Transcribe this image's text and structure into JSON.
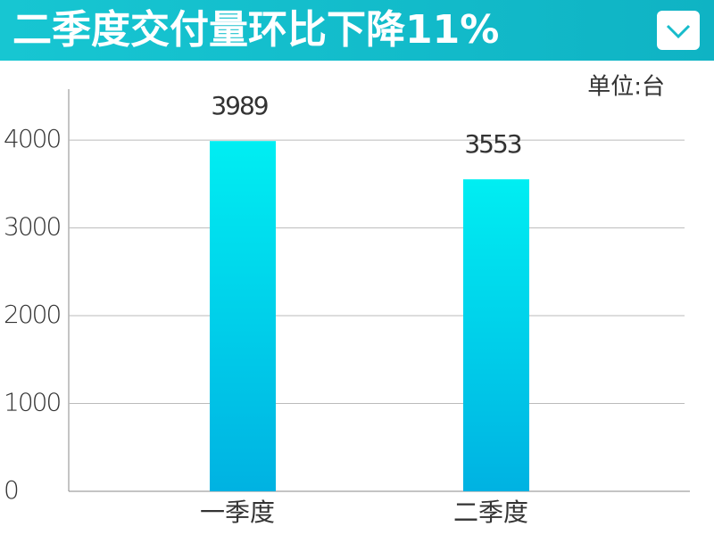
{
  "chart_data": {
    "type": "bar",
    "title": "二季度交付量环比下降11%",
    "unit_label": "单位:台",
    "categories": [
      "一季度",
      "二季度"
    ],
    "values": [
      3989,
      3553
    ],
    "gradient": [
      "#00eef2",
      "#00b2e2"
    ],
    "ylim": [
      0,
      4600
    ],
    "yticks": [
      0,
      1000,
      2000,
      3000,
      4000
    ],
    "grid": true
  }
}
